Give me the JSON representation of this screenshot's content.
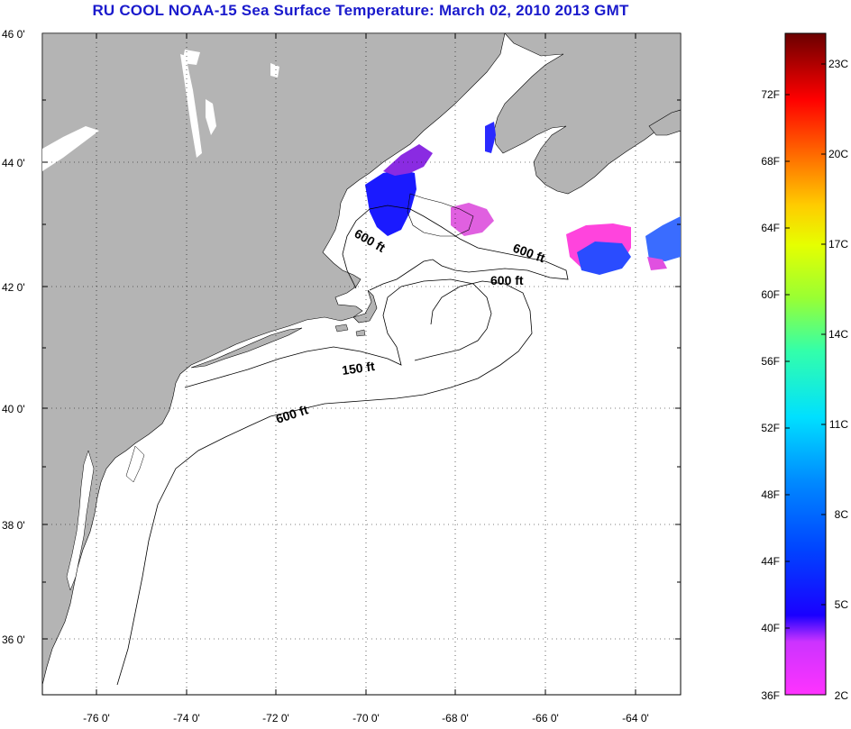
{
  "title": "RU COOL  NOAA-15  Sea Surface Temperature:  March 02, 2010 2013 GMT",
  "map": {
    "lat_labels": [
      "46 0'",
      "44 0'",
      "42 0'",
      "40 0'",
      "38 0'",
      "36 0'"
    ],
    "lon_labels": [
      "-76 0'",
      "-74 0'",
      "-72 0'",
      "-70 0'",
      "-68 0'",
      "-66 0'",
      "-64 0'"
    ],
    "contour_labels": {
      "gulf_of_maine": "600 ft",
      "georges_ne": "600 ft",
      "georges_n": "600 ft",
      "nantucket": "150 ft",
      "shelf_break": "600 ft"
    }
  },
  "colorbar": {
    "fahrenheit": [
      "72F",
      "68F",
      "64F",
      "60F",
      "56F",
      "52F",
      "48F",
      "44F",
      "40F",
      "36F"
    ],
    "celsius": [
      "23C",
      "20C",
      "17C",
      "14C",
      "11C",
      "8C",
      "5C",
      "2C"
    ]
  },
  "colors": {
    "land": "#b4b4b4",
    "ocean": "#ffffff",
    "title": "#1a1acc"
  }
}
